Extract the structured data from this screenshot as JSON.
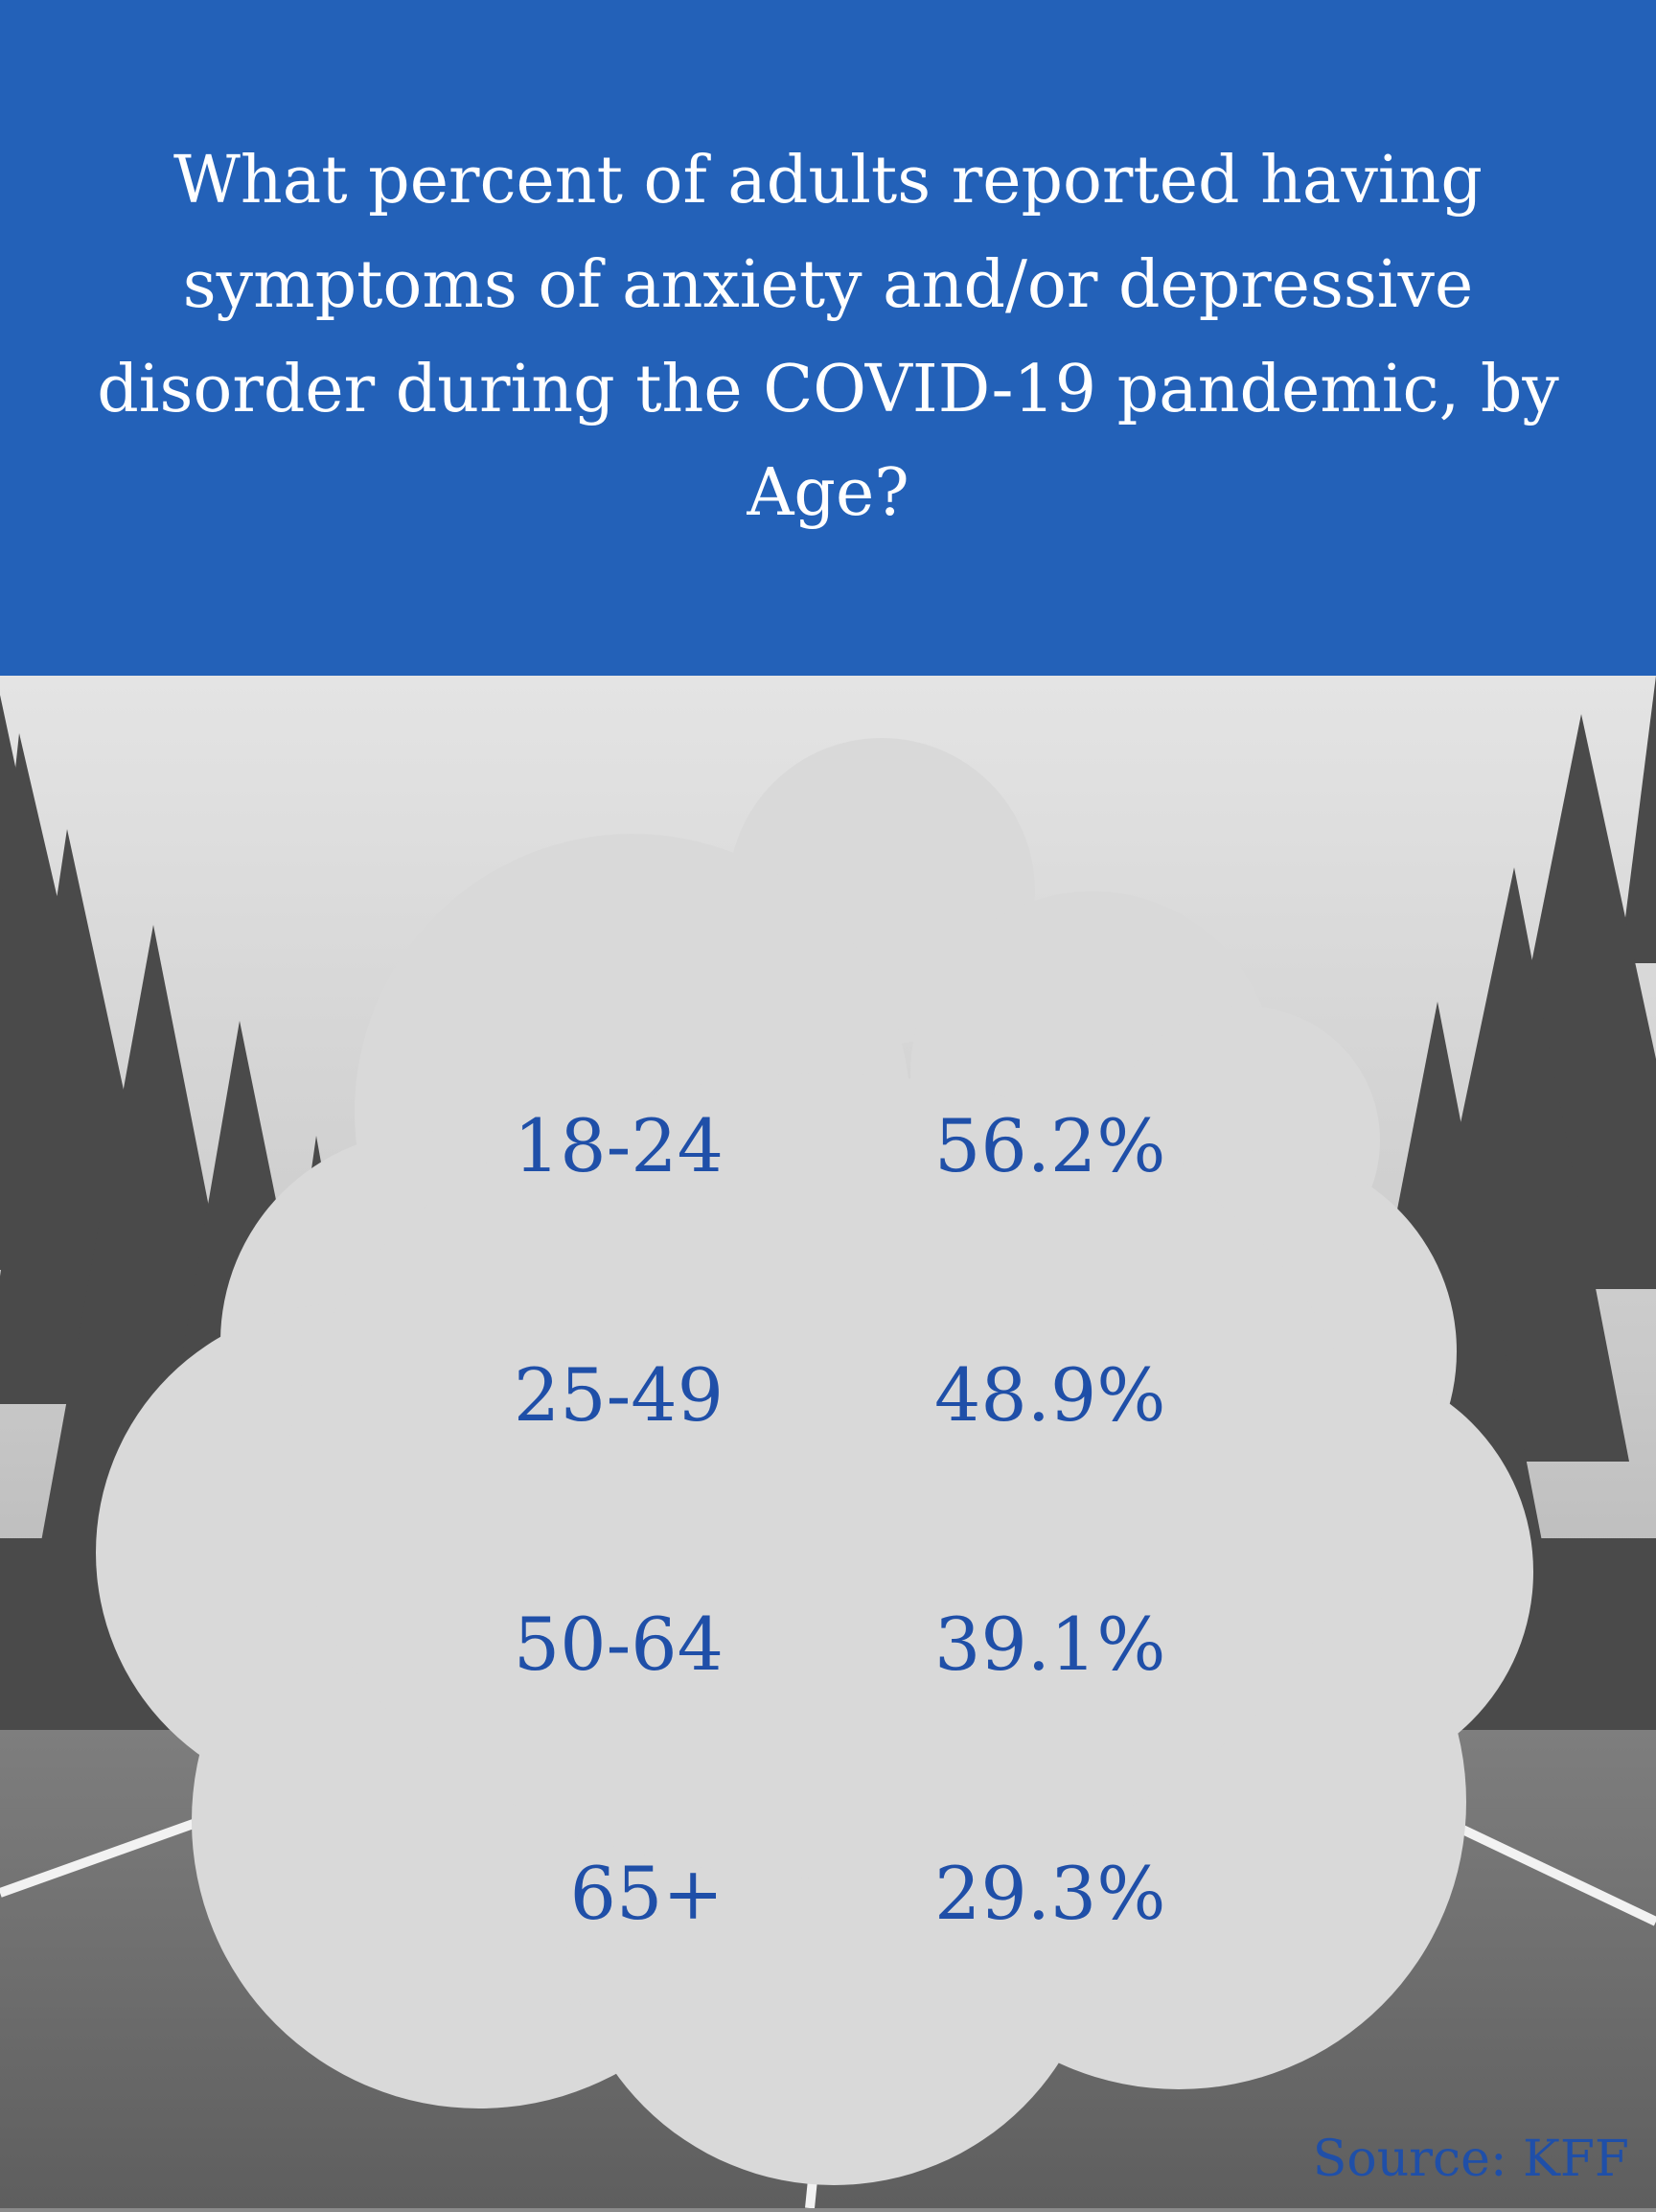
{
  "header": {
    "title": "What percent of adults reported having symptoms of anxiety and/or depressive disorder during the COVID-19 pandemic, by Age?"
  },
  "colors": {
    "header_background": "#2361b8",
    "text_accent": "#1f4fa8",
    "cloud_fill": "#d9d9d9"
  },
  "chart_data": {
    "type": "table",
    "title": "What percent of adults reported having symptoms of anxiety and/or depressive disorder during the COVID-19 pandemic, by Age?",
    "rows": [
      {
        "label": "18-24",
        "value": 56.2,
        "value_text": "56.2%"
      },
      {
        "label": "25-49",
        "value": 48.9,
        "value_text": "48.9%"
      },
      {
        "label": "50-64",
        "value": 39.1,
        "value_text": "39.1%"
      },
      {
        "label": "65+",
        "value": 29.3,
        "value_text": "29.3%"
      }
    ],
    "source": "Source: KFF"
  }
}
